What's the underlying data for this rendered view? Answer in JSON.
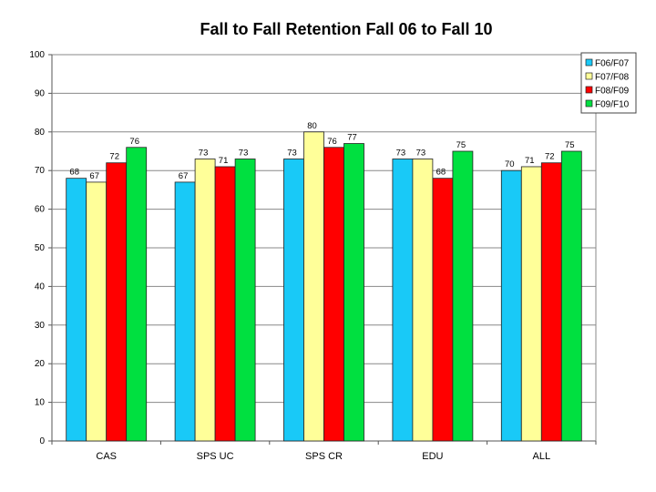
{
  "chart_data": {
    "type": "bar",
    "title": "Fall to Fall Retention Fall 06 to Fall 10",
    "xlabel": "",
    "ylabel": "",
    "ylim": [
      0,
      100
    ],
    "yticks": [
      0,
      10,
      20,
      30,
      40,
      50,
      60,
      70,
      80,
      90,
      100
    ],
    "grid": true,
    "legend_position": "top-right",
    "categories": [
      "CAS",
      "SPS UC",
      "SPS CR",
      "EDU",
      "ALL"
    ],
    "series": [
      {
        "name": "F06/F07",
        "color": "#19c9f7",
        "values": [
          68,
          67,
          73,
          73,
          70
        ]
      },
      {
        "name": "F07/F08",
        "color": "#ffff99",
        "values": [
          67,
          73,
          80,
          73,
          71
        ]
      },
      {
        "name": "F08/F09",
        "color": "#ff0000",
        "values": [
          72,
          71,
          76,
          68,
          72
        ]
      },
      {
        "name": "F09/F10",
        "color": "#00e040",
        "values": [
          76,
          73,
          77,
          75,
          75
        ]
      }
    ]
  }
}
